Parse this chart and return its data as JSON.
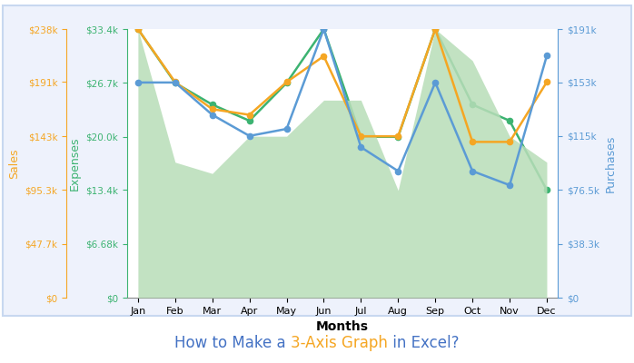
{
  "months": [
    "Jan",
    "Feb",
    "Mar",
    "Apr",
    "May",
    "Jun",
    "Jul",
    "Aug",
    "Sep",
    "Oct",
    "Nov",
    "Dec"
  ],
  "expenses": [
    33400,
    26700,
    24000,
    22000,
    26700,
    33400,
    20000,
    20000,
    33400,
    24000,
    22000,
    13400
  ],
  "sales": [
    238000,
    191000,
    167000,
    162000,
    191000,
    214000,
    143000,
    143000,
    238000,
    138000,
    138000,
    191000
  ],
  "purchases": [
    153000,
    153000,
    130000,
    115000,
    120000,
    191000,
    107000,
    90000,
    153000,
    90000,
    80000,
    172000
  ],
  "area_sales": [
    238000,
    120000,
    110000,
    143000,
    143000,
    175000,
    175000,
    95000,
    238000,
    210000,
    143000,
    120000
  ],
  "expenses_color": "#3cb371",
  "sales_color": "#f5a623",
  "purchases_color": "#5b9bd5",
  "area_color": "#b8ddb8",
  "area_alpha": 0.85,
  "background_color": "#ffffff",
  "border_color": "#b8c8e8",
  "chart_bg": "#ffffff",
  "expenses_ylim": [
    0,
    33400
  ],
  "sales_ylim": [
    0,
    238000
  ],
  "purchases_ylim": [
    0,
    191000
  ],
  "expenses_ticks": [
    0,
    6680,
    13400,
    20000,
    26700,
    33400
  ],
  "expenses_tick_labels": [
    "$0",
    "$6.68k",
    "$13.4k",
    "$20.0k",
    "$26.7k",
    "$33.4k"
  ],
  "sales_ticks": [
    0,
    47700,
    95300,
    143000,
    191000,
    238000
  ],
  "sales_tick_labels": [
    "$0",
    "$47.7k",
    "$95.3k",
    "$143k",
    "$191k",
    "$238k"
  ],
  "purchases_ticks": [
    0,
    38300,
    76500,
    115000,
    153000,
    191000
  ],
  "purchases_tick_labels": [
    "$0",
    "$38.3k",
    "$76.5k",
    "$115k",
    "$153k",
    "$191k"
  ],
  "xlabel": "Months",
  "ylabel_expenses": "Expenses",
  "ylabel_sales": "Sales",
  "ylabel_purchases": "Purchases",
  "title_parts": [
    "How to Make a ",
    "3-Axis Graph",
    " in Excel?"
  ],
  "title_colors": [
    "#4472c4",
    "#f5a623",
    "#4472c4"
  ],
  "title_fontsize": 12,
  "fig_border_color": "#b8c8e8",
  "outer_rect_color": "#c8d8f0"
}
